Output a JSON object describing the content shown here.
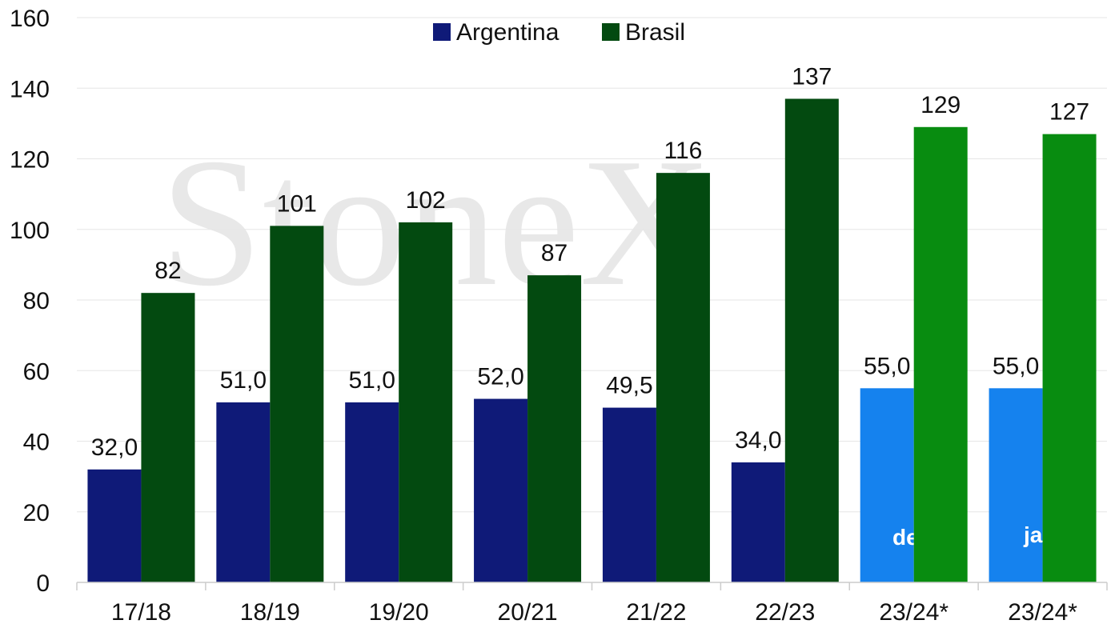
{
  "chart_data": {
    "type": "bar",
    "categories": [
      "17/18",
      "18/19",
      "19/20",
      "20/21",
      "21/22",
      "22/23",
      "23/24*",
      "23/24*"
    ],
    "series": [
      {
        "name": "Argentina",
        "color": "#0f1a78",
        "values": [
          32.0,
          51.0,
          51.0,
          52.0,
          49.5,
          34.0,
          55.0,
          55.0
        ],
        "labels": [
          "32,0",
          "51,0",
          "51,0",
          "52,0",
          "49,5",
          "34,0",
          "55,0",
          "55,0"
        ]
      },
      {
        "name": "Brasil",
        "color": "#034a10",
        "values": [
          82,
          101,
          102,
          87,
          116,
          137,
          129,
          127
        ],
        "labels": [
          "82",
          "101",
          "102",
          "87",
          "116",
          "137",
          "129",
          "127"
        ]
      }
    ],
    "highlight": {
      "indices": [
        6,
        7
      ],
      "argentina_color": "#1582ee",
      "brasil_color": "#088c10",
      "inner_labels": [
        "dez",
        "jan"
      ]
    },
    "ylim": [
      0,
      160
    ],
    "yticks": [
      0,
      20,
      40,
      60,
      80,
      100,
      120,
      140,
      160
    ],
    "grid": true,
    "legend": "top-center",
    "title": "",
    "xlabel": "",
    "ylabel": "",
    "watermark": "StoneX"
  }
}
